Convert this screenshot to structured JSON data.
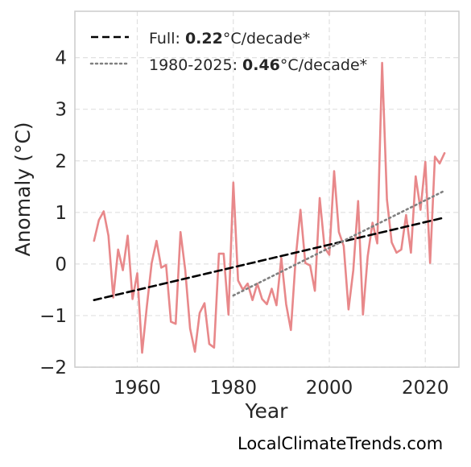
{
  "chart_data": {
    "type": "line",
    "xlabel": "Year",
    "ylabel": "Anomaly (°C)",
    "xlim": [
      1947,
      2027
    ],
    "ylim": [
      -2.0,
      4.9
    ],
    "xticks": [
      1960,
      1980,
      2000,
      2020
    ],
    "yticks": [
      -2,
      -1,
      0,
      1,
      2,
      3,
      4
    ],
    "ytick_labels": [
      "−2",
      "−1",
      "0",
      "1",
      "2",
      "3",
      "4"
    ],
    "grid": true,
    "legend_position": "top-left",
    "series": [
      {
        "style": "solid",
        "color": "#e8888a",
        "x": [
          1951,
          1952,
          1953,
          1954,
          1955,
          1956,
          1957,
          1958,
          1959,
          1960,
          1961,
          1962,
          1963,
          1964,
          1965,
          1966,
          1967,
          1968,
          1969,
          1970,
          1971,
          1972,
          1973,
          1974,
          1975,
          1976,
          1977,
          1978,
          1979,
          1980,
          1981,
          1982,
          1983,
          1984,
          1985,
          1986,
          1987,
          1988,
          1989,
          1990,
          1991,
          1992,
          1993,
          1994,
          1995,
          1996,
          1997,
          1998,
          1999,
          2000,
          2001,
          2002,
          2003,
          2004,
          2005,
          2006,
          2007,
          2008,
          2009,
          2010,
          2011,
          2012,
          2013,
          2014,
          2015,
          2016,
          2017,
          2018,
          2019,
          2020,
          2021,
          2022,
          2023,
          2024
        ],
        "y": [
          0.45,
          0.85,
          1.02,
          0.55,
          -0.65,
          0.28,
          -0.12,
          0.55,
          -0.68,
          -0.18,
          -1.72,
          -0.82,
          0.02,
          0.45,
          -0.07,
          -0.02,
          -1.12,
          -1.16,
          0.62,
          -0.12,
          -1.25,
          -1.7,
          -0.95,
          -0.76,
          -1.55,
          -1.62,
          0.2,
          0.2,
          -0.98,
          1.58,
          -0.32,
          -0.5,
          -0.38,
          -0.7,
          -0.38,
          -0.68,
          -0.78,
          -0.48,
          -0.8,
          0.12,
          -0.78,
          -1.28,
          0.12,
          1.05,
          0.02,
          -0.03,
          -0.52,
          1.28,
          0.32,
          0.18,
          1.8,
          0.62,
          0.35,
          -0.88,
          -0.12,
          1.22,
          -0.98,
          0.15,
          0.8,
          0.4,
          3.9,
          1.25,
          0.42,
          0.22,
          0.28,
          0.95,
          0.22,
          1.7,
          1.05,
          1.98,
          0.02,
          2.08,
          1.95,
          2.15
        ]
      },
      {
        "name": "Full",
        "style": "dashed",
        "color": "#000000",
        "x": [
          1951,
          2024
        ],
        "y": [
          -0.7,
          0.9
        ]
      },
      {
        "name": "1980-2025",
        "style": "dotted",
        "color": "#808080",
        "x": [
          1980,
          2024
        ],
        "y": [
          -0.61,
          1.42
        ]
      }
    ]
  },
  "legend": {
    "items": [
      {
        "prefix": "Full: ",
        "value": "0.22",
        "suffix": "°C/decade*"
      },
      {
        "prefix": "1980-2025: ",
        "value": "0.46",
        "suffix": "°C/decade*"
      }
    ]
  },
  "credit": "LocalClimateTrends.com"
}
